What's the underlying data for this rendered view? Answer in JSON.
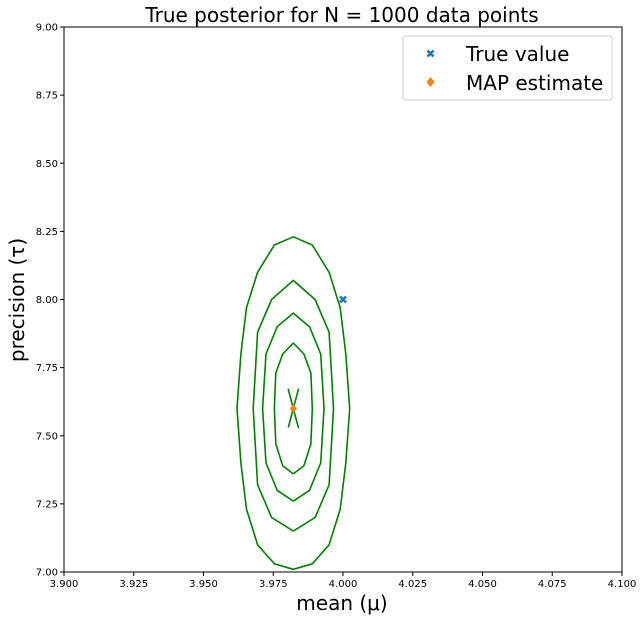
{
  "chart_data": {
    "type": "contour",
    "title": "True posterior for N = 1000 data points",
    "xlabel": "mean (μ)",
    "ylabel": "precision (τ)",
    "xlim": [
      3.9,
      4.1
    ],
    "ylim": [
      7.0,
      9.0
    ],
    "xticks": [
      "3.900",
      "3.925",
      "3.950",
      "3.975",
      "4.000",
      "4.025",
      "4.050",
      "4.075",
      "4.100"
    ],
    "yticks": [
      "7.00",
      "7.25",
      "7.50",
      "7.75",
      "8.00",
      "8.25",
      "8.50",
      "8.75",
      "9.00"
    ],
    "grid": false,
    "legend_position": "top-right",
    "contour_color": "#008000",
    "contours": [
      [
        [
          3.9822,
          7.6
        ],
        [
          3.984,
          7.67
        ],
        [
          3.9822,
          7.6
        ],
        [
          3.9804,
          7.67
        ],
        [
          3.9822,
          7.6
        ],
        [
          3.984,
          7.53
        ],
        [
          3.9822,
          7.6
        ],
        [
          3.9804,
          7.53
        ]
      ],
      [
        [
          3.9822,
          7.36
        ],
        [
          3.986,
          7.39
        ],
        [
          3.9885,
          7.47
        ],
        [
          3.989,
          7.6
        ],
        [
          3.9885,
          7.73
        ],
        [
          3.986,
          7.8
        ],
        [
          3.9822,
          7.84
        ],
        [
          3.9784,
          7.8
        ],
        [
          3.9759,
          7.73
        ],
        [
          3.9754,
          7.6
        ],
        [
          3.9759,
          7.47
        ],
        [
          3.9784,
          7.39
        ],
        [
          3.9822,
          7.36
        ]
      ],
      [
        [
          3.9822,
          7.26
        ],
        [
          3.988,
          7.3
        ],
        [
          3.992,
          7.4
        ],
        [
          3.9932,
          7.6
        ],
        [
          3.992,
          7.8
        ],
        [
          3.988,
          7.9
        ],
        [
          3.9822,
          7.95
        ],
        [
          3.9764,
          7.9
        ],
        [
          3.9724,
          7.8
        ],
        [
          3.9712,
          7.6
        ],
        [
          3.9724,
          7.4
        ],
        [
          3.9764,
          7.3
        ],
        [
          3.9822,
          7.26
        ]
      ],
      [
        [
          3.9822,
          7.15
        ],
        [
          3.99,
          7.2
        ],
        [
          3.995,
          7.32
        ],
        [
          3.9966,
          7.6
        ],
        [
          3.995,
          7.88
        ],
        [
          3.99,
          8.0
        ],
        [
          3.9822,
          8.07
        ],
        [
          3.9744,
          8.0
        ],
        [
          3.9694,
          7.88
        ],
        [
          3.9678,
          7.6
        ],
        [
          3.9694,
          7.32
        ],
        [
          3.9744,
          7.2
        ],
        [
          3.9822,
          7.15
        ]
      ],
      [
        [
          3.9822,
          7.01
        ],
        [
          3.989,
          7.03
        ],
        [
          3.995,
          7.1
        ],
        [
          3.999,
          7.23
        ],
        [
          4.001,
          7.4
        ],
        [
          4.0024,
          7.6
        ],
        [
          4.001,
          7.8
        ],
        [
          3.999,
          7.97
        ],
        [
          3.995,
          8.1
        ],
        [
          3.989,
          8.2
        ],
        [
          3.9822,
          8.23
        ],
        [
          3.9754,
          8.2
        ],
        [
          3.9694,
          8.1
        ],
        [
          3.9654,
          7.97
        ],
        [
          3.9634,
          7.8
        ],
        [
          3.962,
          7.6
        ],
        [
          3.9634,
          7.4
        ],
        [
          3.9654,
          7.23
        ],
        [
          3.9694,
          7.1
        ],
        [
          3.9754,
          7.03
        ],
        [
          3.9822,
          7.01
        ]
      ]
    ],
    "series": [
      {
        "name": "True value",
        "marker": "x",
        "color": "#1f77b4",
        "x": [
          4.0
        ],
        "y": [
          8.0
        ]
      },
      {
        "name": "MAP estimate",
        "marker": "diamond",
        "color": "#ff7f0e",
        "x": [
          3.9822
        ],
        "y": [
          7.6
        ]
      }
    ]
  }
}
